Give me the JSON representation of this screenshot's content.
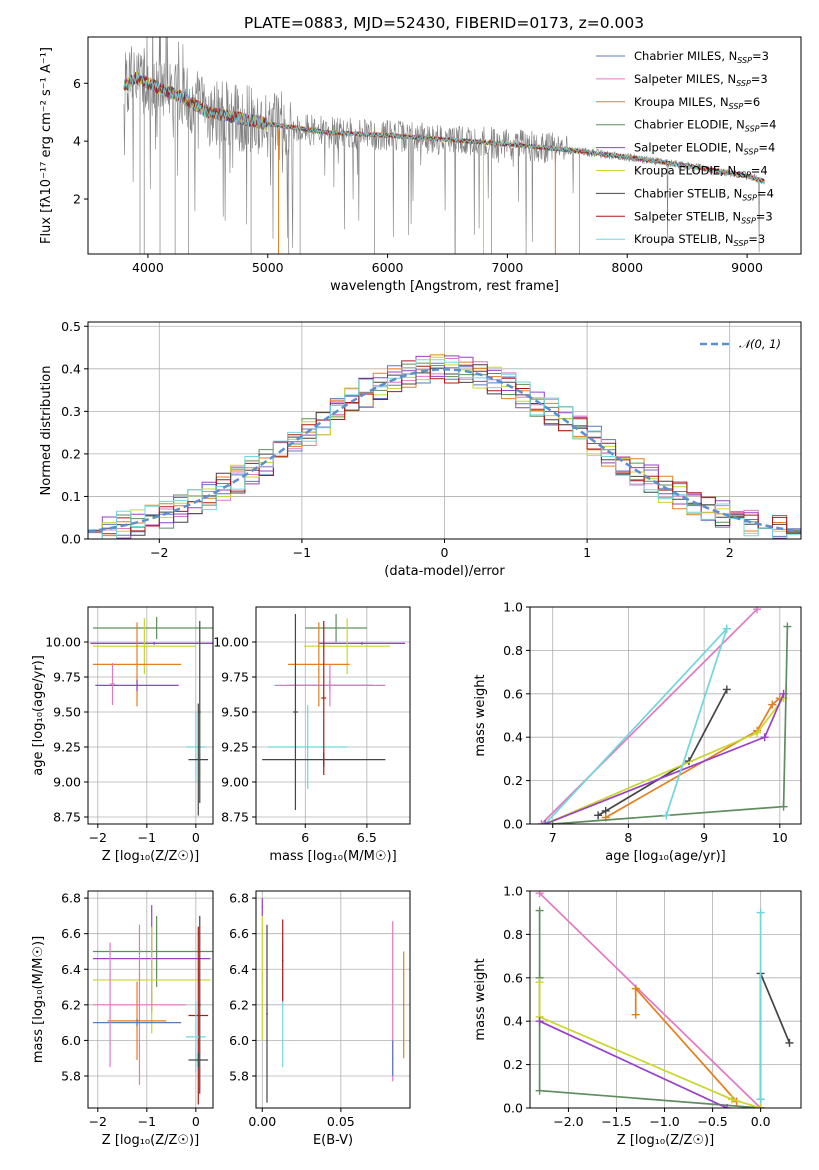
{
  "title": "PLATE=0883, MJD=52430, FIBERID=0173, z=0.003",
  "colors": {
    "Chabrier MILES": "#5b78c2",
    "Salpeter MILES": "#e377c2",
    "Kroupa MILES": "#e57e1e",
    "Chabrier ELODIE": "#5e8d5e",
    "Salpeter ELODIE": "#9a3fc7",
    "Kroupa ELODIE": "#c9d62b",
    "Chabrier STELIB": "#444444",
    "Salpeter STELIB": "#b31616",
    "Kroupa STELIB": "#6fd7dd",
    "data": "#808080",
    "gaussian": "#5a8fd0",
    "grid": "#b0b0b0"
  },
  "legend": {
    "spectrum": [
      {
        "name": "Chabrier MILES",
        "base": "Chabrier MILES, N",
        "sub": "SSP",
        "tail": "=3"
      },
      {
        "name": "Salpeter MILES",
        "base": "Salpeter MILES, N",
        "sub": "SSP",
        "tail": "=3"
      },
      {
        "name": "Kroupa MILES",
        "base": "Kroupa MILES, N",
        "sub": "SSP",
        "tail": "=6"
      },
      {
        "name": "Chabrier ELODIE",
        "base": "Chabrier ELODIE, N",
        "sub": "SSP",
        "tail": "=4"
      },
      {
        "name": "Salpeter ELODIE",
        "base": "Salpeter ELODIE, N",
        "sub": "SSP",
        "tail": "=4"
      },
      {
        "name": "Kroupa ELODIE",
        "base": "Kroupa ELODIE, N",
        "sub": "SSP",
        "tail": "=4"
      },
      {
        "name": "Chabrier STELIB",
        "base": "Chabrier STELIB, N",
        "sub": "SSP",
        "tail": "=4"
      },
      {
        "name": "Salpeter STELIB",
        "base": "Salpeter STELIB, N",
        "sub": "SSP",
        "tail": "=3"
      },
      {
        "name": "Kroupa STELIB",
        "base": "Kroupa STELIB, N",
        "sub": "SSP",
        "tail": "=3"
      }
    ],
    "residual": "𝒩(0, 1)"
  },
  "chart_data": [
    {
      "id": "spectrum",
      "type": "line",
      "xlabel": "wavelength [Angstrom, rest frame]",
      "ylabel": "Flux [fλ10⁻¹⁷ erg cm⁻² s⁻¹ A⁻¹]",
      "xlim": [
        3500,
        9450
      ],
      "ylim": [
        0.1,
        7.6
      ],
      "xticks": [
        4000,
        5000,
        6000,
        7000,
        8000,
        9000
      ],
      "yticks": [
        2,
        4,
        6
      ],
      "grid": false,
      "legend_position": "top-right",
      "x_range": [
        3800,
        9150
      ],
      "continuum": {
        "x": [
          3800,
          3900,
          4000,
          4300,
          4500,
          5000,
          5500,
          6000,
          6500,
          7000,
          7500,
          8000,
          8500,
          9000,
          9150
        ],
        "y": [
          5.9,
          6.2,
          6.0,
          5.5,
          5.0,
          4.6,
          4.3,
          4.2,
          4.05,
          3.9,
          3.7,
          3.45,
          3.15,
          2.8,
          2.6
        ]
      },
      "absorption_lines": [
        3934,
        3969,
        4101,
        4227,
        4340,
        4861,
        5175,
        5270,
        5890,
        6563,
        6867,
        7600
      ]
    },
    {
      "id": "residuals",
      "type": "line",
      "xlabel": "(data-model)/error",
      "ylabel": "Normed distribution",
      "xlim": [
        -2.5,
        2.5
      ],
      "ylim": [
        0,
        0.51
      ],
      "xticks": [
        -2,
        -1,
        0,
        1,
        2
      ],
      "yticks": [
        0.0,
        0.1,
        0.2,
        0.3,
        0.4,
        0.5
      ],
      "grid": true,
      "legend_position": "top-right",
      "bin_width": 0.1,
      "series": [
        {
          "name": "N(0,1)",
          "curve": "gaussian",
          "mean": 0,
          "sigma": 1
        }
      ]
    },
    {
      "id": "age-vs-Z",
      "type": "scatter",
      "xlabel": "Z [log₁₀(Z/Z☉)]",
      "ylabel": "age  [log₁₀(age/yr)]",
      "xlim": [
        -2.2,
        0.35
      ],
      "ylim": [
        8.7,
        10.25
      ],
      "xticks": [
        -2,
        -1,
        0
      ],
      "yticks": [
        8.75,
        9.0,
        9.25,
        9.5,
        9.75,
        10.0
      ],
      "grid": true,
      "points": [
        {
          "series": "Chabrier ELODIE",
          "x": -0.8,
          "y": 10.1,
          "xerr": [
            1.3,
            1.3
          ],
          "yerr": [
            0.08,
            0.08
          ]
        },
        {
          "series": "Salpeter ELODIE",
          "x": -0.85,
          "y": 9.99,
          "xerr": [
            1.3,
            1.3
          ],
          "yerr": [
            0.01,
            0.01
          ]
        },
        {
          "series": "Kroupa ELODIE",
          "x": -1.05,
          "y": 9.97,
          "xerr": [
            1.05,
            1.05
          ],
          "yerr": [
            0.2,
            0.2
          ]
        },
        {
          "series": "Kroupa MILES",
          "x": -1.2,
          "y": 9.84,
          "xerr": [
            0.9,
            0.9
          ],
          "yerr": [
            0.3,
            0.3
          ]
        },
        {
          "series": "Salpeter ELODIE",
          "x": -1.2,
          "y": 9.69,
          "xerr": [
            0.85,
            0.85
          ],
          "yerr": [
            0.04,
            0.04
          ]
        },
        {
          "series": "Salpeter MILES",
          "x": -1.7,
          "y": 9.7,
          "xerr": [
            0.05,
            0.05
          ],
          "yerr": [
            0.15,
            0.15
          ]
        },
        {
          "series": "Kroupa STELIB",
          "x": 0.0,
          "y": 9.25,
          "xerr": [
            0.2,
            0.2
          ],
          "yerr": [
            0.25,
            0.25
          ]
        },
        {
          "series": "Chabrier STELIB",
          "x": 0.05,
          "y": 9.16,
          "xerr": [
            0.2,
            0.2
          ],
          "yerr": [
            0.4,
            0.4
          ]
        },
        {
          "series": "Chabrier STELIB",
          "x": 0.08,
          "y": 9.5,
          "xerr": [
            0.02,
            0.02
          ],
          "yerr": [
            0.65,
            0.65
          ]
        }
      ]
    },
    {
      "id": "age-vs-mass",
      "type": "scatter",
      "xlabel": "mass [log₁₀(M/M☉)]",
      "ylabel": "",
      "xlim": [
        5.6,
        6.85
      ],
      "ylim": [
        8.7,
        10.25
      ],
      "xticks": [
        6.0,
        6.5
      ],
      "yticks": [
        8.75,
        9.0,
        9.25,
        9.5,
        9.75,
        10.0
      ],
      "grid": true,
      "points": [
        {
          "series": "Chabrier ELODIE",
          "x": 6.25,
          "y": 10.1,
          "xerr": [
            0.25,
            0.25
          ],
          "yerr": [
            0.1,
            0.1
          ]
        },
        {
          "series": "Salpeter ELODIE",
          "x": 6.46,
          "y": 9.99,
          "xerr": [
            0.35,
            0.35
          ],
          "yerr": [
            0.01,
            0.01
          ]
        },
        {
          "series": "Kroupa ELODIE",
          "x": 6.34,
          "y": 9.97,
          "xerr": [
            0.35,
            0.35
          ],
          "yerr": [
            0.2,
            0.2
          ]
        },
        {
          "series": "Kroupa MILES",
          "x": 6.11,
          "y": 9.84,
          "xerr": [
            0.25,
            0.25
          ],
          "yerr": [
            0.3,
            0.3
          ]
        },
        {
          "series": "Salpeter ELODIE",
          "x": 6.2,
          "y": 9.69,
          "xerr": [
            0.35,
            0.35
          ],
          "yerr": [
            0.04,
            0.04
          ]
        },
        {
          "series": "Salpeter MILES",
          "x": 6.2,
          "y": 9.69,
          "xerr": [
            0.45,
            0.45
          ],
          "yerr": [
            0.15,
            0.15
          ]
        },
        {
          "series": "Kroupa STELIB",
          "x": 6.02,
          "y": 9.25,
          "xerr": [
            0.32,
            0.32
          ],
          "yerr": [
            0.3,
            0.3
          ]
        },
        {
          "series": "Chabrier STELIB",
          "x": 6.15,
          "y": 9.16,
          "xerr": [
            0.5,
            0.5
          ],
          "yerr": [
            0.05,
            0.05
          ]
        },
        {
          "series": "Chabrier STELIB",
          "x": 5.92,
          "y": 9.5,
          "xerr": [
            0.02,
            0.02
          ],
          "yerr": [
            0.7,
            0.7
          ]
        },
        {
          "series": "Salpeter STELIB",
          "x": 6.15,
          "y": 9.6,
          "xerr": [
            0.02,
            0.02
          ],
          "yerr": [
            0.55,
            0.55
          ]
        }
      ]
    },
    {
      "id": "weight-vs-age",
      "type": "line",
      "xlabel": "age  [log₁₀(age/yr)]",
      "ylabel": "mass weight",
      "xlim": [
        6.7,
        10.28
      ],
      "ylim": [
        0,
        1.0
      ],
      "xticks": [
        7,
        8,
        9,
        10
      ],
      "yticks": [
        0.0,
        0.2,
        0.4,
        0.6,
        0.8,
        1.0
      ],
      "grid": true,
      "series": [
        {
          "name": "Salpeter MILES",
          "x": [
            6.85,
            9.7
          ],
          "y": [
            0.0,
            0.99
          ]
        },
        {
          "name": "Kroupa STELIB",
          "x": [
            6.9,
            9.3
          ],
          "y": [
            0.0,
            0.9
          ]
        },
        {
          "name": "Chabrier STELIB",
          "x": [
            7.6,
            7.7,
            8.8,
            9.3
          ],
          "y": [
            0.04,
            0.06,
            0.29,
            0.62
          ]
        },
        {
          "name": "Kroupa MILES",
          "x": [
            7.7,
            9.7,
            9.9,
            10.0
          ],
          "y": [
            0.03,
            0.43,
            0.55,
            0.58
          ]
        },
        {
          "name": "Kroupa ELODIE",
          "x": [
            6.9,
            9.7,
            10.05
          ],
          "y": [
            0.0,
            0.42,
            0.58
          ]
        },
        {
          "name": "Salpeter ELODIE",
          "x": [
            6.9,
            9.8,
            10.05
          ],
          "y": [
            0.0,
            0.4,
            0.6
          ]
        },
        {
          "name": "Chabrier ELODIE",
          "x": [
            7.0,
            10.05,
            10.1
          ],
          "y": [
            0.0,
            0.08,
            0.91
          ]
        },
        {
          "name": "Kroupa STELIB",
          "x": [
            8.5,
            9.3
          ],
          "y": [
            0.04,
            0.9
          ]
        }
      ]
    },
    {
      "id": "mass-vs-Z",
      "type": "scatter",
      "xlabel": "Z [log₁₀(Z/Z☉)]",
      "ylabel": "mass [log₁₀(M/M☉)]",
      "xlim": [
        -2.2,
        0.35
      ],
      "ylim": [
        5.62,
        6.84
      ],
      "xticks": [
        -2,
        -1,
        0
      ],
      "yticks": [
        5.8,
        6.0,
        6.2,
        6.4,
        6.6,
        6.8
      ],
      "grid": true,
      "points": [
        {
          "series": "Chabrier ELODIE",
          "x": -0.8,
          "y": 6.5,
          "xerr": [
            1.3,
            1.3
          ],
          "yerr": [
            0.2,
            0.2
          ]
        },
        {
          "series": "Salpeter ELODIE",
          "x": -0.9,
          "y": 6.46,
          "xerr": [
            1.2,
            1.2
          ],
          "yerr": [
            0.3,
            0.3
          ]
        },
        {
          "series": "Kroupa ELODIE",
          "x": -0.9,
          "y": 6.34,
          "xerr": [
            1.2,
            1.2
          ],
          "yerr": [
            0.3,
            0.3
          ]
        },
        {
          "series": "Salpeter MILES",
          "x": -1.15,
          "y": 6.2,
          "xerr": [
            0.95,
            0.95
          ],
          "yerr": [
            0.45,
            0.45
          ]
        },
        {
          "series": "Kroupa MILES",
          "x": -1.2,
          "y": 6.11,
          "xerr": [
            0.6,
            0.6
          ],
          "yerr": [
            0.22,
            0.22
          ]
        },
        {
          "series": "Chabrier MILES",
          "x": -1.2,
          "y": 6.1,
          "xerr": [
            0.9,
            0.9
          ],
          "yerr": [
            0.02,
            0.02
          ]
        },
        {
          "series": "Salpeter STELIB",
          "x": 0.05,
          "y": 6.14,
          "xerr": [
            0.2,
            0.2
          ],
          "yerr": [
            0.5,
            0.5
          ]
        },
        {
          "series": "Kroupa STELIB",
          "x": 0.0,
          "y": 6.02,
          "xerr": [
            0.2,
            0.2
          ],
          "yerr": [
            0.2,
            0.2
          ]
        },
        {
          "series": "Chabrier STELIB",
          "x": 0.05,
          "y": 5.89,
          "xerr": [
            0.2,
            0.2
          ],
          "yerr": [
            0.04,
            0.04
          ]
        },
        {
          "series": "Chabrier STELIB",
          "x": 0.08,
          "y": 6.2,
          "xerr": [
            0.02,
            0.02
          ],
          "yerr": [
            0.5,
            0.5
          ]
        },
        {
          "series": "Salpeter MILES",
          "x": -1.75,
          "y": 6.2,
          "xerr": [
            0.02,
            0.02
          ],
          "yerr": [
            0.35,
            0.35
          ]
        }
      ]
    },
    {
      "id": "mass-vs-EBV",
      "type": "scatter",
      "xlabel": "E(B-V)",
      "ylabel": "",
      "xlim": [
        -0.004,
        0.094
      ],
      "ylim": [
        5.62,
        6.84
      ],
      "xticks": [
        0.0,
        0.05
      ],
      "xtick_labels": [
        "0.00",
        "0.05"
      ],
      "yticks": [
        5.8,
        6.0,
        6.2,
        6.4,
        6.6,
        6.8
      ],
      "grid": true,
      "points": [
        {
          "series": "Salpeter ELODIE",
          "x": 0.0,
          "y": 6.75,
          "xerr": [
            0.0005,
            0.0005
          ],
          "yerr": [
            0.05,
            0.05
          ]
        },
        {
          "series": "Kroupa ELODIE",
          "x": 0.0,
          "y": 6.35,
          "xerr": [
            0.0005,
            0.0005
          ],
          "yerr": [
            0.35,
            0.35
          ]
        },
        {
          "series": "Chabrier STELIB",
          "x": 0.003,
          "y": 6.15,
          "xerr": [
            0.0005,
            0.0005
          ],
          "yerr": [
            0.5,
            0.5
          ]
        },
        {
          "series": "Kroupa STELIB",
          "x": 0.013,
          "y": 6.2,
          "xerr": [
            0.0005,
            0.0005
          ],
          "yerr": [
            0.35,
            0.35
          ]
        },
        {
          "series": "Salpeter STELIB",
          "x": 0.013,
          "y": 6.45,
          "xerr": [
            0.0005,
            0.0005
          ],
          "yerr": [
            0.23,
            0.23
          ]
        },
        {
          "series": "Salpeter MILES",
          "x": 0.083,
          "y": 6.22,
          "xerr": [
            0.0005,
            0.0005
          ],
          "yerr": [
            0.45,
            0.45
          ]
        },
        {
          "series": "Chabrier MILES",
          "x": 0.083,
          "y": 5.9,
          "xerr": [
            0.0005,
            0.0005
          ],
          "yerr": [
            0.1,
            0.1
          ]
        },
        {
          "series": "Kroupa MILES",
          "x": 0.09,
          "y": 6.2,
          "xerr": [
            0.0005,
            0.0005
          ],
          "yerr": [
            0.3,
            0.3
          ]
        }
      ]
    },
    {
      "id": "weight-vs-Z",
      "type": "line",
      "xlabel": "Z [log₁₀(Z/Z☉)]",
      "ylabel": "mass weight",
      "xlim": [
        -2.4,
        0.42
      ],
      "ylim": [
        0,
        1.0
      ],
      "xticks": [
        -2.0,
        -1.5,
        -1.0,
        -0.5,
        0.0
      ],
      "xtick_labels": [
        "−2.0",
        "−1.5",
        "−1.0",
        "−0.5",
        "0.0"
      ],
      "yticks": [
        0.0,
        0.2,
        0.4,
        0.6,
        0.8,
        1.0
      ],
      "grid": true,
      "series": [
        {
          "name": "Salpeter MILES",
          "x": [
            -2.3,
            0.0
          ],
          "y": [
            0.99,
            0.0
          ]
        },
        {
          "name": "Chabrier ELODIE",
          "x": [
            -2.3,
            -2.3,
            -2.3,
            0.0
          ],
          "y": [
            0.91,
            0.6,
            0.08,
            0.0
          ]
        },
        {
          "name": "Kroupa MILES",
          "x": [
            -1.3,
            -1.3,
            -0.25
          ],
          "y": [
            0.43,
            0.55,
            0.03
          ]
        },
        {
          "name": "Kroupa ELODIE",
          "x": [
            -2.3,
            -2.3,
            -0.3,
            0.0
          ],
          "y": [
            0.58,
            0.42,
            0.04,
            0.0
          ]
        },
        {
          "name": "Salpeter ELODIE",
          "x": [
            -2.3,
            -0.35
          ],
          "y": [
            0.4,
            0.0
          ]
        },
        {
          "name": "Chabrier STELIB",
          "x": [
            0.0,
            0.0,
            0.3
          ],
          "y": [
            0.04,
            0.62,
            0.3
          ]
        },
        {
          "name": "Kroupa STELIB",
          "x": [
            0.0,
            0.0
          ],
          "y": [
            0.9,
            0.04
          ]
        }
      ]
    }
  ]
}
